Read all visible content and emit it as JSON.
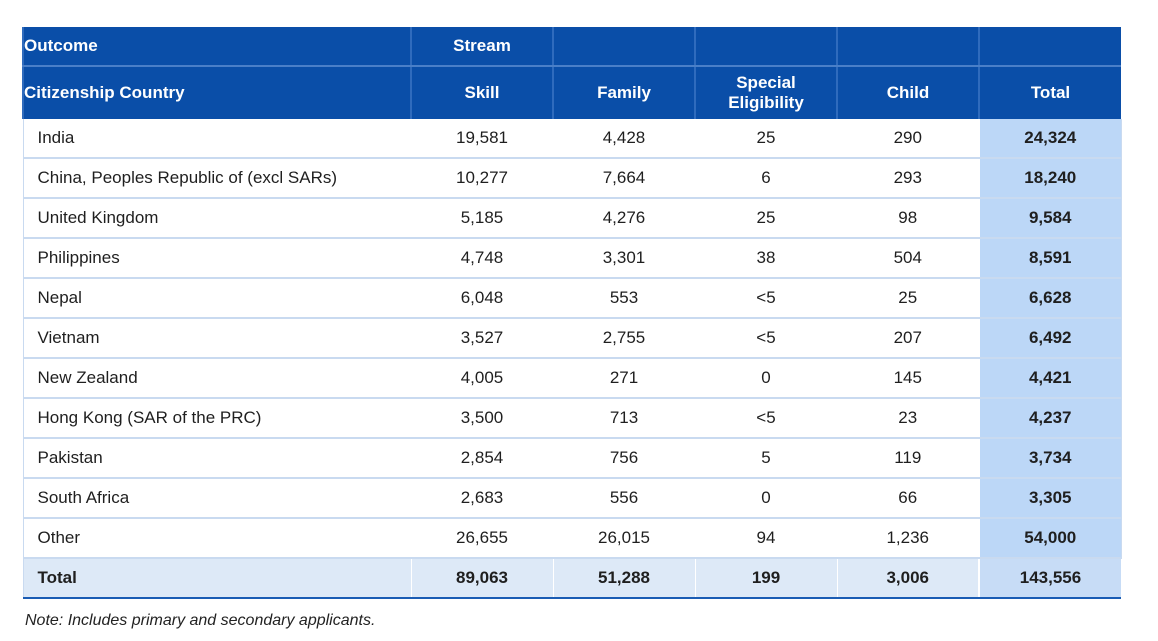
{
  "header": {
    "row1": [
      "Outcome",
      "Stream",
      "",
      "",
      "",
      ""
    ],
    "row2": [
      "Citizenship Country",
      "Skill",
      "Family",
      "Special Eligibility",
      "Child",
      "Total"
    ]
  },
  "rows": [
    {
      "country": "India",
      "skill": "19,581",
      "family": "4,428",
      "special": "25",
      "child": "290",
      "total": "24,324"
    },
    {
      "country": "China, Peoples Republic of (excl SARs)",
      "skill": "10,277",
      "family": "7,664",
      "special": "6",
      "child": "293",
      "total": "18,240"
    },
    {
      "country": "United Kingdom",
      "skill": "5,185",
      "family": "4,276",
      "special": "25",
      "child": "98",
      "total": "9,584"
    },
    {
      "country": "Philippines",
      "skill": "4,748",
      "family": "3,301",
      "special": "38",
      "child": "504",
      "total": "8,591"
    },
    {
      "country": "Nepal",
      "skill": "6,048",
      "family": "553",
      "special": "<5",
      "child": "25",
      "total": "6,628"
    },
    {
      "country": "Vietnam",
      "skill": "3,527",
      "family": "2,755",
      "special": "<5",
      "child": "207",
      "total": "6,492"
    },
    {
      "country": "New Zealand",
      "skill": "4,005",
      "family": "271",
      "special": "0",
      "child": "145",
      "total": "4,421"
    },
    {
      "country": "Hong Kong (SAR of the PRC)",
      "skill": "3,500",
      "family": "713",
      "special": "<5",
      "child": "23",
      "total": "4,237"
    },
    {
      "country": "Pakistan",
      "skill": "2,854",
      "family": "756",
      "special": "5",
      "child": "119",
      "total": "3,734"
    },
    {
      "country": "South Africa",
      "skill": "2,683",
      "family": "556",
      "special": "0",
      "child": "66",
      "total": "3,305"
    },
    {
      "country": "Other",
      "skill": "26,655",
      "family": "26,015",
      "special": "94",
      "child": "1,236",
      "total": "54,000"
    }
  ],
  "total_row": {
    "country": "Total",
    "skill": "89,063",
    "family": "51,288",
    "special": "199",
    "child": "3,006",
    "total": "143,556"
  },
  "note": "Note: Includes primary and secondary applicants."
}
